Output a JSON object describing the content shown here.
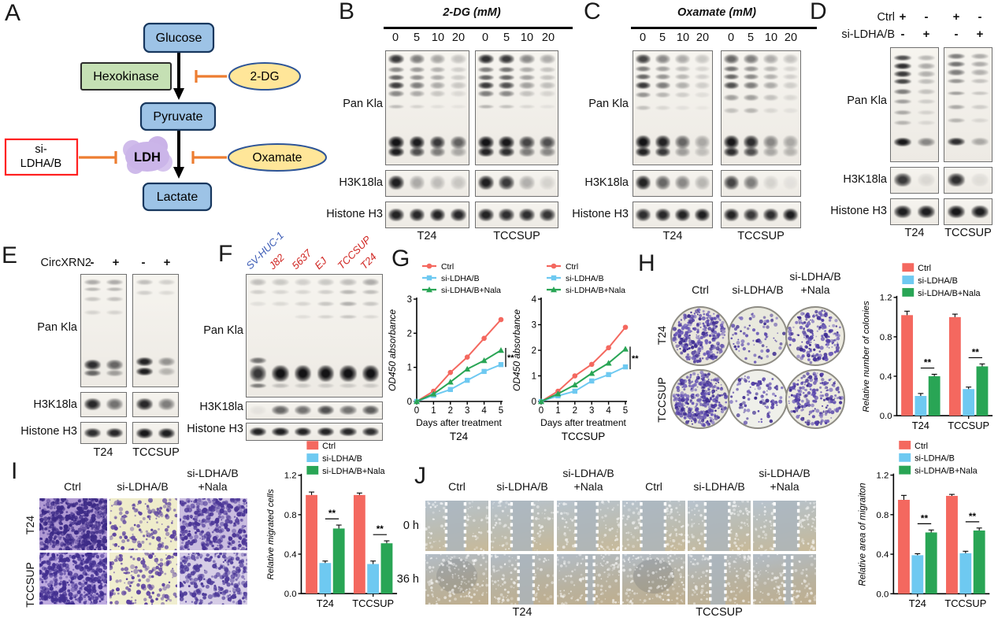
{
  "panel_letters": {
    "A": "A",
    "B": "B",
    "C": "C",
    "D": "D",
    "E": "E",
    "F": "F",
    "G": "G",
    "H": "H",
    "I": "I",
    "J": "J"
  },
  "colors": {
    "ctrl": "#F4685F",
    "si_ldhab": "#6EC9F1",
    "nala": "#29A555",
    "inhibit": "#ED7D31",
    "box_blue": "#9DC3E6",
    "box_green": "#C5E0B4",
    "ellipse_yellow": "#FFE699",
    "ldh_purple": "#CBB5E9",
    "red_outline": "#FF2020",
    "normal_line_blue": "#3B5BB5",
    "cancer_line_red": "#D02420"
  },
  "common": {
    "pan_kla": "Pan Kla",
    "h3k18la": "H3K18la",
    "histone_h3": "Histone H3",
    "t24": "T24",
    "tccsup": "TCCSUP",
    "ctrl": "Ctrl",
    "si_ldhab": "si-LDHA/B",
    "si_nala": "si-LDHA/B+Nala",
    "nala_suffix": "+Nala",
    "sig": "**"
  },
  "panels": {
    "A": {
      "glucose": "Glucose",
      "hexokinase": "Hexokinase",
      "pyruvate": "Pyruvate",
      "ldh": "LDH",
      "lactate": "Lactate",
      "dg": "2-DG",
      "oxamate": "Oxamate",
      "si_line1": "si-",
      "si_line2": "LDHA/B"
    },
    "B": {
      "title": "2-DG (mM)",
      "doses": [
        "0",
        "5",
        "10",
        "20"
      ]
    },
    "C": {
      "title": "Oxamate (mM)",
      "doses": [
        "0",
        "5",
        "10",
        "20"
      ]
    },
    "D": {
      "row1_label": "Ctrl",
      "row1_signs": [
        "+",
        "-",
        "+",
        "-"
      ],
      "row2_label": "si-LDHA/B",
      "row2_signs": [
        "-",
        "+",
        "-",
        "+"
      ]
    },
    "E": {
      "condition": "CircXRN2",
      "signs": [
        "-",
        "+",
        "-",
        "+"
      ]
    },
    "F": {
      "cell_lines": [
        {
          "name": "SV-HUC-1",
          "color": "#3B5BB5"
        },
        {
          "name": "J82",
          "color": "#D02420"
        },
        {
          "name": "5637",
          "color": "#D02420"
        },
        {
          "name": "EJ",
          "color": "#D02420"
        },
        {
          "name": "TCCSUP",
          "color": "#D02420"
        },
        {
          "name": "T24",
          "color": "#D02420"
        }
      ]
    },
    "J": {
      "timepoints": [
        "0 h",
        "36 h"
      ]
    }
  },
  "chart_data": [
    {
      "id": "G_T24",
      "type": "line",
      "title": "T24",
      "xlabel": "Days after treatment",
      "ylabel": "OD450 absorbance",
      "x": [
        0,
        1,
        2,
        3,
        4,
        5
      ],
      "ylim": [
        0,
        3
      ],
      "yticks": [
        0,
        1,
        2,
        3
      ],
      "ytick_labels": [
        "0",
        "1",
        "2",
        "3"
      ],
      "significance": "**",
      "legend_position": "top",
      "series": [
        {
          "name": "Ctrl",
          "color": "#F4685F",
          "marker": "circle",
          "values": [
            0,
            0.3,
            0.85,
            1.3,
            1.85,
            2.4
          ]
        },
        {
          "name": "si-LDHA/B",
          "color": "#6EC9F1",
          "marker": "square",
          "values": [
            0,
            0.18,
            0.35,
            0.62,
            0.88,
            1.08
          ]
        },
        {
          "name": "si-LDHA/B+Nala",
          "color": "#29A555",
          "marker": "triangle",
          "values": [
            0,
            0.22,
            0.57,
            0.95,
            1.2,
            1.5
          ]
        }
      ]
    },
    {
      "id": "G_TCCSUP",
      "type": "line",
      "title": "TCCSUP",
      "xlabel": "Days after treatment",
      "ylabel": "OD450 absorbance",
      "x": [
        0,
        1,
        2,
        3,
        4,
        5
      ],
      "ylim": [
        0,
        4
      ],
      "yticks": [
        0,
        1,
        2,
        3,
        4
      ],
      "ytick_labels": [
        "0",
        "1",
        "2",
        "3",
        "4"
      ],
      "significance": "**",
      "legend_position": "top",
      "series": [
        {
          "name": "Ctrl",
          "color": "#F4685F",
          "marker": "circle",
          "values": [
            0,
            0.4,
            1.0,
            1.45,
            2.1,
            2.9
          ]
        },
        {
          "name": "si-LDHA/B",
          "color": "#6EC9F1",
          "marker": "square",
          "values": [
            0,
            0.22,
            0.4,
            0.8,
            1.05,
            1.35
          ]
        },
        {
          "name": "si-LDHA/B+Nala",
          "color": "#29A555",
          "marker": "triangle",
          "values": [
            0,
            0.3,
            0.65,
            1.1,
            1.5,
            2.05
          ]
        }
      ]
    },
    {
      "id": "H_bar",
      "type": "bar",
      "ylabel": "Relative number of colonies",
      "categories": [
        "T24",
        "TCCSUP"
      ],
      "ylim": [
        0,
        1.2
      ],
      "yticks": [
        0,
        0.4,
        0.8,
        1.2
      ],
      "ytick_labels": [
        "0.0",
        "0.4",
        "0.8",
        "1.2"
      ],
      "significance": "**",
      "legend_position": "top",
      "series": [
        {
          "name": "Ctrl",
          "color": "#F4685F",
          "values": [
            1.02,
            1.0
          ],
          "errors": [
            0.04,
            0.03
          ]
        },
        {
          "name": "si-LDHA/B",
          "color": "#6EC9F1",
          "values": [
            0.2,
            0.27
          ],
          "errors": [
            0.025,
            0.02
          ]
        },
        {
          "name": "si-LDHA/B+Nala",
          "color": "#29A555",
          "values": [
            0.4,
            0.5
          ],
          "errors": [
            0.02,
            0.025
          ]
        }
      ]
    },
    {
      "id": "I_bar",
      "type": "bar",
      "ylabel": "Relative migrated cells",
      "categories": [
        "T24",
        "TCCSUP"
      ],
      "ylim": [
        0,
        1.2
      ],
      "yticks": [
        0,
        0.4,
        0.8,
        1.2
      ],
      "ytick_labels": [
        "0.0",
        "0.4",
        "0.8",
        "1.2"
      ],
      "significance": "**",
      "legend_position": "top",
      "series": [
        {
          "name": "Ctrl",
          "color": "#F4685F",
          "values": [
            1.0,
            1.0
          ],
          "errors": [
            0.03,
            0.02
          ]
        },
        {
          "name": "si-LDHA/B",
          "color": "#6EC9F1",
          "values": [
            0.31,
            0.3
          ],
          "errors": [
            0.02,
            0.03
          ]
        },
        {
          "name": "si-LDHA/B+Nala",
          "color": "#29A555",
          "values": [
            0.66,
            0.51
          ],
          "errors": [
            0.035,
            0.025
          ]
        }
      ]
    },
    {
      "id": "J_bar",
      "type": "bar",
      "ylabel": "Relative area of migraiton",
      "categories": [
        "T24",
        "TCCSUP"
      ],
      "ylim": [
        0,
        1.2
      ],
      "yticks": [
        0,
        0.4,
        0.8,
        1.2
      ],
      "ytick_labels": [
        "0.0",
        "0.4",
        "0.8",
        "1.2"
      ],
      "significance": "**",
      "legend_position": "top",
      "series": [
        {
          "name": "Ctrl",
          "color": "#F4685F",
          "values": [
            0.95,
            0.99
          ],
          "errors": [
            0.045,
            0.015
          ]
        },
        {
          "name": "si-LDHA/B",
          "color": "#6EC9F1",
          "values": [
            0.39,
            0.41
          ],
          "errors": [
            0.015,
            0.02
          ]
        },
        {
          "name": "si-LDHA/B+Nala",
          "color": "#29A555",
          "values": [
            0.62,
            0.64
          ],
          "errors": [
            0.025,
            0.025
          ]
        }
      ]
    }
  ]
}
